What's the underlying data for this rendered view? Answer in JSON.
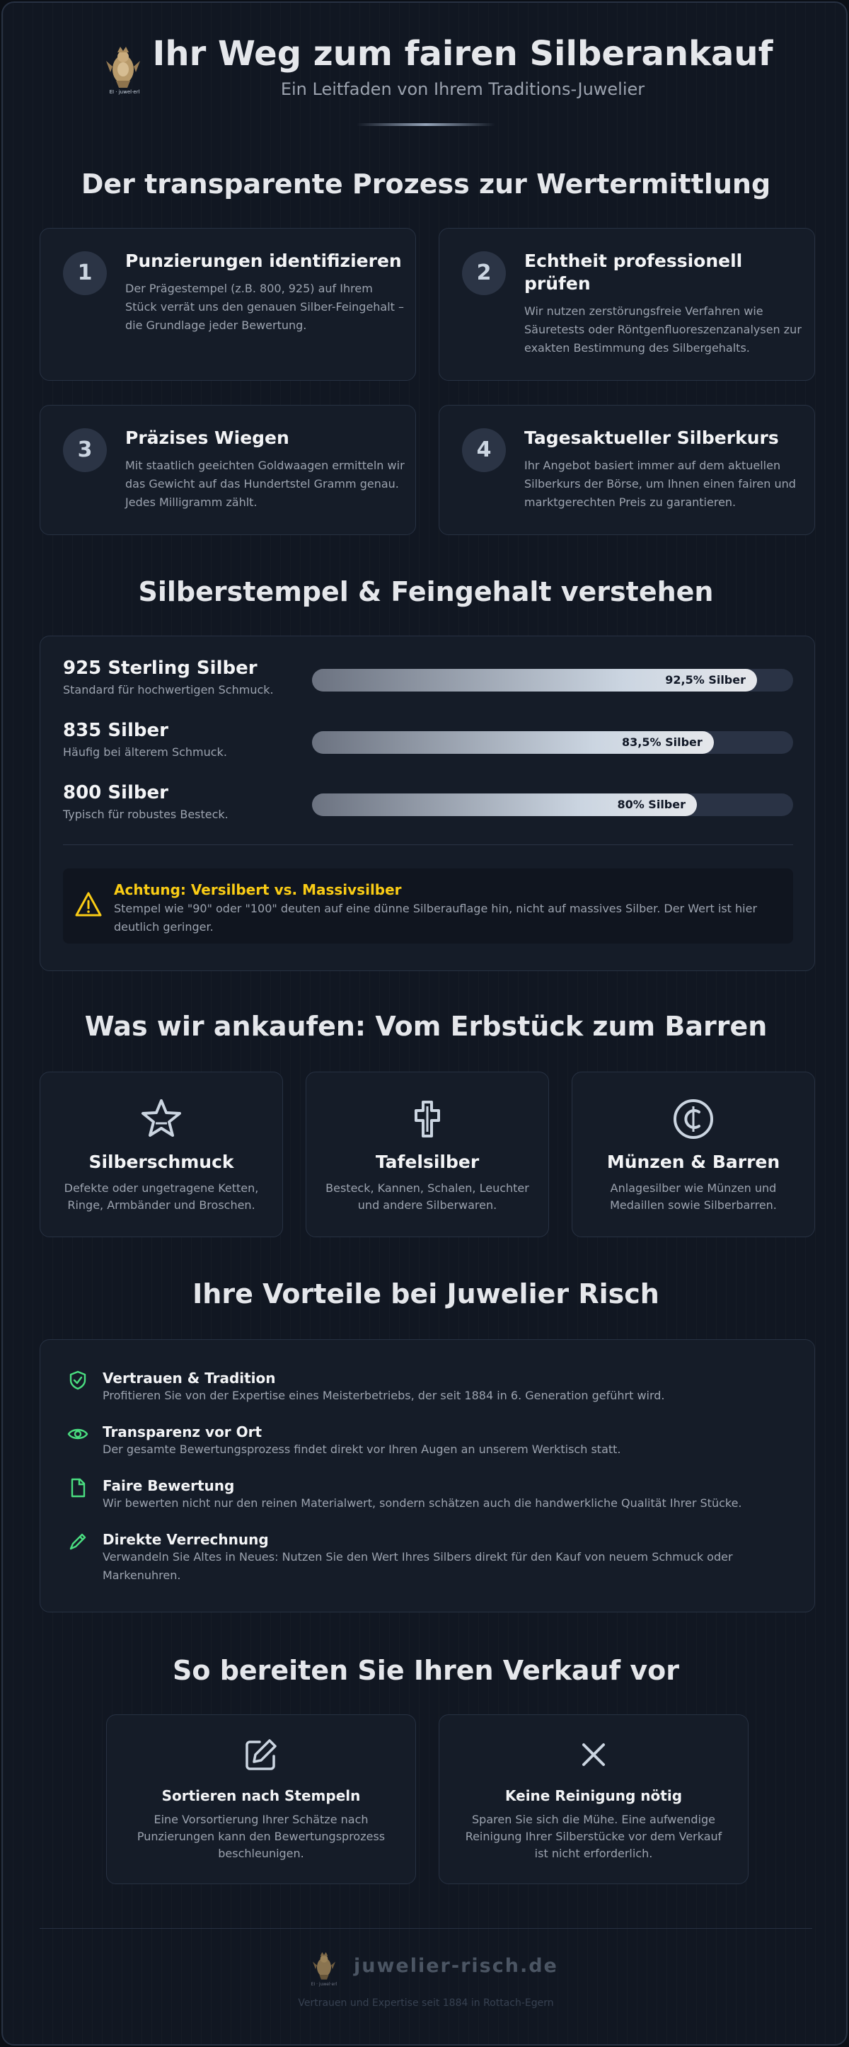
{
  "header": {
    "logo_caption": "EI · juwel·erl",
    "title": "Ihr Weg zum fairen Silberankauf",
    "subtitle": "Ein Leitfaden von Ihrem Traditions-Juwelier"
  },
  "process": {
    "title": "Der transparente Prozess zur Wertermittlung",
    "steps": [
      {
        "num": "1",
        "title": "Punzierungen identifizieren",
        "text": "Der Prägestempel (z.B. 800, 925) auf Ihrem Stück verrät uns den genauen Silber-Feingehalt – die Grundlage jeder Bewertung."
      },
      {
        "num": "2",
        "title": "Echtheit professionell prüfen",
        "text": "Wir nutzen zerstörungsfreie Verfahren wie Säuretests oder Röntgenfluoreszenzanalysen zur exakten Bestimmung des Silbergehalts."
      },
      {
        "num": "3",
        "title": "Präzises Wiegen",
        "text": "Mit staatlich geeichten Goldwaagen ermitteln wir das Gewicht auf das Hundertstel Gramm genau. Jedes Milligramm zählt."
      },
      {
        "num": "4",
        "title": "Tagesaktueller Silberkurs",
        "text": "Ihr Angebot basiert immer auf dem aktuellen Silberkurs der Börse, um Ihnen einen fairen und marktgerechten Preis zu garantieren."
      }
    ]
  },
  "hallmarks": {
    "title": "Silberstempel & Feingehalt verstehen",
    "items": [
      {
        "title": "925 Sterling Silber",
        "sub": "Standard für hochwertigen Schmuck.",
        "label": "92,5% Silber",
        "fraction": 0.925
      },
      {
        "title": "835 Silber",
        "sub": "Häufig bei älterem Schmuck.",
        "label": "83,5% Silber",
        "fraction": 0.835
      },
      {
        "title": "800 Silber",
        "sub": "Typisch für robustes Besteck.",
        "label": "80% Silber",
        "fraction": 0.8
      }
    ],
    "warning": {
      "title": "Achtung: Versilbert vs. Massivsilber",
      "text": "Stempel wie \"90\" oder \"100\" deuten auf eine dünne Silberauflage hin, nicht auf massives Silber. Der Wert ist hier deutlich geringer."
    }
  },
  "buy": {
    "title": "Was wir ankaufen: Vom Erbstück zum Barren",
    "items": [
      {
        "icon": "star-icon",
        "title": "Silberschmuck",
        "text": "Defekte oder ungetragene Ketten, Ringe, Armbänder und Broschen."
      },
      {
        "icon": "cutlery-icon",
        "title": "Tafelsilber",
        "text": "Besteck, Kannen, Schalen, Leuchter und andere Silberwaren."
      },
      {
        "icon": "coin-icon",
        "title": "Münzen & Barren",
        "text": "Anlagesilber wie Münzen und Medaillen sowie Silberbarren."
      }
    ]
  },
  "advantages": {
    "title": "Ihre Vorteile bei Juwelier Risch",
    "items": [
      {
        "icon": "shield-check-icon",
        "title": "Vertrauen & Tradition",
        "text": "Profitieren Sie von der Expertise eines Meisterbetriebs, der seit 1884 in 6. Generation geführt wird."
      },
      {
        "icon": "eye-icon",
        "title": "Transparenz vor Ort",
        "text": "Der gesamte Bewertungsprozess findet direkt vor Ihren Augen an unserem Werktisch statt."
      },
      {
        "icon": "document-icon",
        "title": "Faire Bewertung",
        "text": "Wir bewerten nicht nur den reinen Materialwert, sondern schätzen auch die handwerkliche Qualität Ihrer Stücke."
      },
      {
        "icon": "pencil-icon",
        "title": "Direkte Verrechnung",
        "text": "Verwandeln Sie Altes in Neues: Nutzen Sie den Wert Ihres Silbers direkt für den Kauf von neuem Schmuck oder Markenuhren."
      }
    ],
    "accent": "#4ade80"
  },
  "prepare": {
    "title": "So bereiten Sie Ihren Verkauf vor",
    "items": [
      {
        "icon": "edit-icon",
        "title": "Sortieren nach Stempeln",
        "text": "Eine Vorsortierung Ihrer Schätze nach Punzierungen kann den Bewertungsprozess beschleunigen."
      },
      {
        "icon": "close-icon",
        "title": "Keine Reinigung nötig",
        "text": "Sparen Sie sich die Mühe. Eine aufwendige Reinigung Ihrer Silberstücke vor dem Verkauf ist nicht erforderlich."
      }
    ]
  },
  "footer": {
    "site": "juwelier-risch.de",
    "logo_caption": "EI · juwel·erl",
    "tagline": "Vertrauen und Expertise seit 1884 in Rottach-Egern"
  }
}
